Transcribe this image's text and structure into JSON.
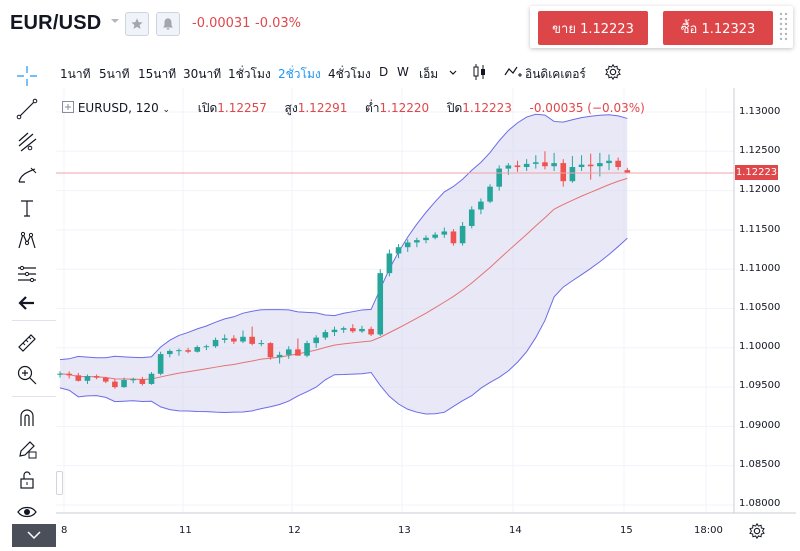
{
  "header": {
    "symbol": "EUR/USD",
    "change_abs": "-0.00031",
    "change_pct": "-0.03%",
    "sell_label": "ขาย 1.12223",
    "buy_label": "ซื้อ 1.12323",
    "icons": [
      "dropdown-caret-icon",
      "star-icon",
      "bell-icon",
      "grip-icon"
    ]
  },
  "toolbar": {
    "timeframes": [
      "1นาที",
      "5นาที",
      "15นาที",
      "30นาที",
      "1ชั่วโมง",
      "2ชั่วโมง",
      "4ชั่วโมง",
      "D",
      "W",
      "เอ็ม"
    ],
    "active_timeframe": "2ชั่วโมง",
    "indicators_label": "อินดิเคเตอร์",
    "accent": "#2196f3"
  },
  "legend": {
    "symbol": "EURUSD, 120",
    "open_label": "เปิด",
    "open": "1.12257",
    "high_label": "สูง",
    "high": "1.12291",
    "low_label": "ต่ำ",
    "low": "1.12220",
    "close_label": "ปิด",
    "close": "1.12223",
    "change": "-0.00035 (−0.03%)"
  },
  "price_axis": {
    "labels": [
      "1.13000",
      "1.12500",
      "1.12000",
      "1.11500",
      "1.11000",
      "1.10500",
      "1.10000",
      "1.09500",
      "1.09000",
      "1.08500",
      "1.08000"
    ],
    "current": "1.12223"
  },
  "time_axis": {
    "labels": [
      "8",
      "11",
      "12",
      "13",
      "14",
      "15",
      "18:00"
    ]
  },
  "colors": {
    "up": "#26a69a",
    "down": "#ef5350",
    "band_fill": "#d9d9f0",
    "band_line": "#6c6ce6",
    "basis": "#e57373"
  },
  "chart_data": {
    "type": "candlestick",
    "title": "",
    "indicator": "bollinger-bands",
    "ylim": [
      1.0775,
      1.1325
    ],
    "x_ticks": [
      "8",
      "11",
      "12",
      "13",
      "14",
      "15",
      "18:00"
    ],
    "candles": [
      [
        1.0966,
        1.097,
        1.0962,
        1.0967
      ],
      [
        1.0967,
        1.097,
        1.0961,
        1.0965
      ],
      [
        1.0965,
        1.0968,
        1.0957,
        1.0958
      ],
      [
        1.0958,
        1.0966,
        1.0954,
        1.0964
      ],
      [
        1.0964,
        1.0966,
        1.096,
        1.0962
      ],
      [
        1.0962,
        1.0963,
        1.0955,
        1.0957
      ],
      [
        1.0957,
        1.096,
        1.0948,
        1.095
      ],
      [
        1.095,
        1.0962,
        1.0949,
        1.0959
      ],
      [
        1.0959,
        1.0962,
        1.0955,
        1.096
      ],
      [
        1.096,
        1.0963,
        1.0952,
        1.0954
      ],
      [
        1.0954,
        1.0969,
        1.0953,
        1.0967
      ],
      [
        1.0967,
        1.0995,
        1.0965,
        1.0992
      ],
      [
        1.0992,
        1.0998,
        1.0988,
        1.0996
      ],
      [
        1.0996,
        1.0999,
        1.099,
        1.0997
      ],
      [
        1.0997,
        1.1,
        1.0993,
        1.0995
      ],
      [
        1.0995,
        1.1003,
        1.0994,
        1.1001
      ],
      [
        1.1001,
        1.1004,
        1.0997,
        1.1002
      ],
      [
        1.1002,
        1.1013,
        1.1,
        1.101
      ],
      [
        1.101,
        1.1017,
        1.1006,
        1.1012
      ],
      [
        1.1012,
        1.1016,
        1.1005,
        1.1008
      ],
      [
        1.1008,
        1.1022,
        1.1006,
        1.1014
      ],
      [
        1.1014,
        1.1027,
        1.1003,
        1.1005
      ],
      [
        1.1005,
        1.101,
        1.1002,
        1.1006
      ],
      [
        1.1006,
        1.1007,
        1.0985,
        1.0988
      ],
      [
        1.0988,
        1.0995,
        1.098,
        1.0991
      ],
      [
        1.0991,
        1.1002,
        1.0986,
        1.0998
      ],
      [
        1.0998,
        1.1012,
        1.0993,
        1.099
      ],
      [
        1.099,
        1.1009,
        1.0988,
        1.1006
      ],
      [
        1.1006,
        1.1016,
        1.1,
        1.1013
      ],
      [
        1.1013,
        1.1023,
        1.101,
        1.102
      ],
      [
        1.102,
        1.1027,
        1.1015,
        1.1023
      ],
      [
        1.1023,
        1.1027,
        1.1019,
        1.1025
      ],
      [
        1.1025,
        1.103,
        1.1019,
        1.1021
      ],
      [
        1.1021,
        1.1028,
        1.1019,
        1.1024
      ],
      [
        1.1024,
        1.1027,
        1.1015,
        1.1017
      ],
      [
        1.1017,
        1.11,
        1.1015,
        1.1095
      ],
      [
        1.1095,
        1.1125,
        1.1091,
        1.112
      ],
      [
        1.112,
        1.1132,
        1.1114,
        1.1128
      ],
      [
        1.1128,
        1.1138,
        1.1122,
        1.1134
      ],
      [
        1.1134,
        1.114,
        1.1128,
        1.1137
      ],
      [
        1.1137,
        1.1143,
        1.1133,
        1.114
      ],
      [
        1.114,
        1.1147,
        1.1138,
        1.1144
      ],
      [
        1.1144,
        1.1153,
        1.114,
        1.1148
      ],
      [
        1.1148,
        1.1151,
        1.113,
        1.1133
      ],
      [
        1.1133,
        1.116,
        1.113,
        1.1155
      ],
      [
        1.1155,
        1.118,
        1.1152,
        1.1176
      ],
      [
        1.1176,
        1.119,
        1.117,
        1.1186
      ],
      [
        1.1186,
        1.1208,
        1.1184,
        1.1205
      ],
      [
        1.1205,
        1.1232,
        1.12,
        1.1228
      ],
      [
        1.1228,
        1.1235,
        1.122,
        1.1232
      ],
      [
        1.1232,
        1.1238,
        1.1224,
        1.123
      ],
      [
        1.123,
        1.124,
        1.1225,
        1.1234
      ],
      [
        1.1234,
        1.1245,
        1.1228,
        1.1236
      ],
      [
        1.1236,
        1.125,
        1.1227,
        1.1231
      ],
      [
        1.1231,
        1.1248,
        1.1225,
        1.1235
      ],
      [
        1.1235,
        1.124,
        1.1205,
        1.1212
      ],
      [
        1.1212,
        1.1244,
        1.121,
        1.123
      ],
      [
        1.123,
        1.1245,
        1.1225,
        1.1233
      ],
      [
        1.1233,
        1.1247,
        1.1214,
        1.1231
      ],
      [
        1.1231,
        1.1248,
        1.1218,
        1.1235
      ],
      [
        1.1235,
        1.1246,
        1.1226,
        1.1238
      ],
      [
        1.1238,
        1.1242,
        1.1226,
        1.123
      ],
      [
        1.1226,
        1.1229,
        1.1222,
        1.1222
      ]
    ]
  }
}
